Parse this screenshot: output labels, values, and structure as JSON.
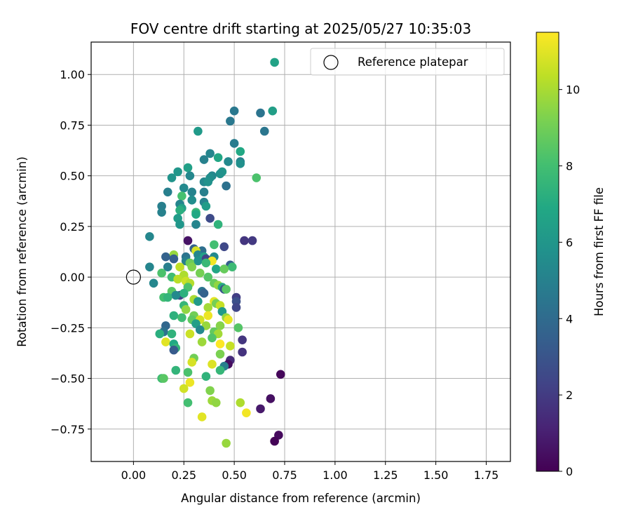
{
  "chart_data": {
    "type": "scatter",
    "title": "FOV centre drift starting at 2025/05/27 10:35:03",
    "xlabel": "Angular distance from reference (arcmin)",
    "ylabel": "Rotation from reference (arcmin)",
    "xlim": [
      -0.21,
      1.87
    ],
    "ylim": [
      -0.91,
      1.16
    ],
    "xticks": [
      "0.00",
      "0.25",
      "0.50",
      "0.75",
      "1.00",
      "1.25",
      "1.50",
      "1.75"
    ],
    "yticks": [
      "−0.75",
      "−0.50",
      "−0.25",
      "0.00",
      "0.25",
      "0.50",
      "0.75",
      "1.00"
    ],
    "grid": true,
    "legend": {
      "position": "top-right",
      "entries": [
        "Reference platepar"
      ]
    },
    "colorbar": {
      "label": "Hours from first FF file",
      "min": 0,
      "max": 11.5,
      "ticks": [
        "0",
        "2",
        "4",
        "6",
        "8",
        "10"
      ],
      "colormap": "viridis"
    },
    "reference_point": {
      "x": 0.0,
      "y": 0.0
    },
    "points": [
      {
        "x": 0.7,
        "y": 1.06,
        "h": 6.6
      },
      {
        "x": 0.5,
        "y": 0.82,
        "h": 4.6
      },
      {
        "x": 0.63,
        "y": 0.81,
        "h": 4.4
      },
      {
        "x": 0.69,
        "y": 0.82,
        "h": 6.4
      },
      {
        "x": 0.48,
        "y": 0.77,
        "h": 4.6
      },
      {
        "x": 0.32,
        "y": 0.72,
        "h": 6.2
      },
      {
        "x": 0.65,
        "y": 0.72,
        "h": 4.5
      },
      {
        "x": 0.5,
        "y": 0.66,
        "h": 4.8
      },
      {
        "x": 0.53,
        "y": 0.62,
        "h": 6.9
      },
      {
        "x": 0.38,
        "y": 0.61,
        "h": 5.2
      },
      {
        "x": 0.42,
        "y": 0.59,
        "h": 6.8
      },
      {
        "x": 0.35,
        "y": 0.58,
        "h": 5.0
      },
      {
        "x": 0.47,
        "y": 0.57,
        "h": 5.4
      },
      {
        "x": 0.53,
        "y": 0.57,
        "h": 5.0
      },
      {
        "x": 0.53,
        "y": 0.56,
        "h": 5.7
      },
      {
        "x": 0.27,
        "y": 0.54,
        "h": 6.5
      },
      {
        "x": 0.22,
        "y": 0.52,
        "h": 6.0
      },
      {
        "x": 0.44,
        "y": 0.52,
        "h": 6.0
      },
      {
        "x": 0.43,
        "y": 0.51,
        "h": 5.8
      },
      {
        "x": 0.39,
        "y": 0.5,
        "h": 5.3
      },
      {
        "x": 0.38,
        "y": 0.49,
        "h": 5.6
      },
      {
        "x": 0.28,
        "y": 0.5,
        "h": 5.3
      },
      {
        "x": 0.61,
        "y": 0.49,
        "h": 8.2
      },
      {
        "x": 0.19,
        "y": 0.49,
        "h": 5.9
      },
      {
        "x": 0.35,
        "y": 0.47,
        "h": 5.3
      },
      {
        "x": 0.37,
        "y": 0.47,
        "h": 5.8
      },
      {
        "x": 0.25,
        "y": 0.44,
        "h": 5.4
      },
      {
        "x": 0.46,
        "y": 0.45,
        "h": 4.3
      },
      {
        "x": 0.17,
        "y": 0.42,
        "h": 4.9
      },
      {
        "x": 0.29,
        "y": 0.42,
        "h": 5.1
      },
      {
        "x": 0.35,
        "y": 0.42,
        "h": 4.9
      },
      {
        "x": 0.24,
        "y": 0.4,
        "h": 8.1
      },
      {
        "x": 0.29,
        "y": 0.38,
        "h": 5.6
      },
      {
        "x": 0.35,
        "y": 0.37,
        "h": 5.1
      },
      {
        "x": 0.36,
        "y": 0.35,
        "h": 6.3
      },
      {
        "x": 0.23,
        "y": 0.36,
        "h": 5.2
      },
      {
        "x": 0.14,
        "y": 0.35,
        "h": 4.9
      },
      {
        "x": 0.24,
        "y": 0.34,
        "h": 6.5
      },
      {
        "x": 0.23,
        "y": 0.33,
        "h": 7.2
      },
      {
        "x": 0.31,
        "y": 0.32,
        "h": 7.7
      },
      {
        "x": 0.14,
        "y": 0.32,
        "h": 5.0
      },
      {
        "x": 0.31,
        "y": 0.31,
        "h": 6.9
      },
      {
        "x": 0.38,
        "y": 0.29,
        "h": 2.6
      },
      {
        "x": 0.22,
        "y": 0.29,
        "h": 6.3
      },
      {
        "x": 0.42,
        "y": 0.26,
        "h": 7.4
      },
      {
        "x": 0.23,
        "y": 0.26,
        "h": 6.0
      },
      {
        "x": 0.31,
        "y": 0.26,
        "h": 5.2
      },
      {
        "x": 0.08,
        "y": 0.2,
        "h": 5.3
      },
      {
        "x": 0.55,
        "y": 0.18,
        "h": 1.8
      },
      {
        "x": 0.59,
        "y": 0.18,
        "h": 1.9
      },
      {
        "x": 0.27,
        "y": 0.18,
        "h": 0.6
      },
      {
        "x": 0.4,
        "y": 0.16,
        "h": 8.0
      },
      {
        "x": 0.45,
        "y": 0.15,
        "h": 2.5
      },
      {
        "x": 0.3,
        "y": 0.14,
        "h": 3.6
      },
      {
        "x": 0.34,
        "y": 0.13,
        "h": 4.2
      },
      {
        "x": 0.31,
        "y": 0.13,
        "h": 10.8
      },
      {
        "x": 0.32,
        "y": 0.11,
        "h": 5.3
      },
      {
        "x": 0.2,
        "y": 0.11,
        "h": 9.7
      },
      {
        "x": 0.16,
        "y": 0.1,
        "h": 3.6
      },
      {
        "x": 0.26,
        "y": 0.1,
        "h": 4.4
      },
      {
        "x": 0.35,
        "y": 0.1,
        "h": 6.5
      },
      {
        "x": 0.2,
        "y": 0.09,
        "h": 3.4
      },
      {
        "x": 0.4,
        "y": 0.1,
        "h": 5.4
      },
      {
        "x": 0.36,
        "y": 0.09,
        "h": 2.3
      },
      {
        "x": 0.26,
        "y": 0.08,
        "h": 4.9
      },
      {
        "x": 0.32,
        "y": 0.08,
        "h": 5.8
      },
      {
        "x": 0.39,
        "y": 0.08,
        "h": 11.3
      },
      {
        "x": 0.28,
        "y": 0.07,
        "h": 8.9
      },
      {
        "x": 0.36,
        "y": 0.07,
        "h": 7.7
      },
      {
        "x": 0.48,
        "y": 0.06,
        "h": 3.4
      },
      {
        "x": 0.49,
        "y": 0.05,
        "h": 7.8
      },
      {
        "x": 0.08,
        "y": 0.05,
        "h": 5.2
      },
      {
        "x": 0.17,
        "y": 0.05,
        "h": 4.9
      },
      {
        "x": 0.29,
        "y": 0.05,
        "h": 9.3
      },
      {
        "x": 0.23,
        "y": 0.05,
        "h": 10.4
      },
      {
        "x": 0.41,
        "y": 0.04,
        "h": 6.8
      },
      {
        "x": 0.45,
        "y": 0.04,
        "h": 8.8
      },
      {
        "x": 0.14,
        "y": 0.02,
        "h": 8.2
      },
      {
        "x": 0.33,
        "y": 0.02,
        "h": 9.1
      },
      {
        "x": 0.25,
        "y": 0.01,
        "h": 10.1
      },
      {
        "x": 0.37,
        "y": 0.0,
        "h": 8.4
      },
      {
        "x": 0.19,
        "y": 0.0,
        "h": 7.9
      },
      {
        "x": 0.22,
        "y": -0.01,
        "h": 10.3
      },
      {
        "x": 0.26,
        "y": -0.02,
        "h": 10.6
      },
      {
        "x": 0.28,
        "y": -0.03,
        "h": 10.2
      },
      {
        "x": 0.1,
        "y": -0.03,
        "h": 5.3
      },
      {
        "x": 0.4,
        "y": -0.03,
        "h": 8.8
      },
      {
        "x": 0.42,
        "y": -0.04,
        "h": 9.6
      },
      {
        "x": 0.27,
        "y": -0.05,
        "h": 8.2
      },
      {
        "x": 0.44,
        "y": -0.05,
        "h": 7.0
      },
      {
        "x": 0.45,
        "y": -0.06,
        "h": 3.0
      },
      {
        "x": 0.46,
        "y": -0.06,
        "h": 8.5
      },
      {
        "x": 0.19,
        "y": -0.07,
        "h": 8.5
      },
      {
        "x": 0.34,
        "y": -0.07,
        "h": 4.4
      },
      {
        "x": 0.35,
        "y": -0.08,
        "h": 3.6
      },
      {
        "x": 0.23,
        "y": -0.09,
        "h": 2.4
      },
      {
        "x": 0.25,
        "y": -0.08,
        "h": 7.3
      },
      {
        "x": 0.15,
        "y": -0.1,
        "h": 8.0
      },
      {
        "x": 0.21,
        "y": -0.09,
        "h": 5.4
      },
      {
        "x": 0.17,
        "y": -0.1,
        "h": 7.5
      },
      {
        "x": 0.3,
        "y": -0.11,
        "h": 10.0
      },
      {
        "x": 0.4,
        "y": -0.12,
        "h": 11.0
      },
      {
        "x": 0.41,
        "y": -0.13,
        "h": 9.1
      },
      {
        "x": 0.32,
        "y": -0.12,
        "h": 6.2
      },
      {
        "x": 0.51,
        "y": -0.1,
        "h": 2.1
      },
      {
        "x": 0.51,
        "y": -0.12,
        "h": 2.8
      },
      {
        "x": 0.43,
        "y": -0.14,
        "h": 10.5
      },
      {
        "x": 0.25,
        "y": -0.14,
        "h": 7.6
      },
      {
        "x": 0.37,
        "y": -0.15,
        "h": 9.9
      },
      {
        "x": 0.51,
        "y": -0.15,
        "h": 2.4
      },
      {
        "x": 0.26,
        "y": -0.16,
        "h": 9.6
      },
      {
        "x": 0.44,
        "y": -0.17,
        "h": 6.2
      },
      {
        "x": 0.2,
        "y": -0.19,
        "h": 7.3
      },
      {
        "x": 0.3,
        "y": -0.19,
        "h": 9.0
      },
      {
        "x": 0.24,
        "y": -0.2,
        "h": 7.9
      },
      {
        "x": 0.37,
        "y": -0.19,
        "h": 11.2
      },
      {
        "x": 0.29,
        "y": -0.21,
        "h": 8.6
      },
      {
        "x": 0.33,
        "y": -0.21,
        "h": 10.7
      },
      {
        "x": 0.46,
        "y": -0.2,
        "h": 9.7
      },
      {
        "x": 0.47,
        "y": -0.21,
        "h": 11.1
      },
      {
        "x": 0.31,
        "y": -0.23,
        "h": 6.4
      },
      {
        "x": 0.36,
        "y": -0.24,
        "h": 9.7
      },
      {
        "x": 0.16,
        "y": -0.24,
        "h": 3.8
      },
      {
        "x": 0.43,
        "y": -0.24,
        "h": 9.4
      },
      {
        "x": 0.52,
        "y": -0.25,
        "h": 8.4
      },
      {
        "x": 0.33,
        "y": -0.26,
        "h": 5.4
      },
      {
        "x": 0.15,
        "y": -0.27,
        "h": 4.3
      },
      {
        "x": 0.4,
        "y": -0.27,
        "h": 8.7
      },
      {
        "x": 0.42,
        "y": -0.28,
        "h": 9.9
      },
      {
        "x": 0.28,
        "y": -0.28,
        "h": 10.6
      },
      {
        "x": 0.13,
        "y": -0.28,
        "h": 7.2
      },
      {
        "x": 0.19,
        "y": -0.28,
        "h": 7.4
      },
      {
        "x": 0.54,
        "y": -0.31,
        "h": 1.8
      },
      {
        "x": 0.39,
        "y": -0.3,
        "h": 8.3
      },
      {
        "x": 0.34,
        "y": -0.32,
        "h": 9.8
      },
      {
        "x": 0.16,
        "y": -0.32,
        "h": 11.0
      },
      {
        "x": 0.2,
        "y": -0.33,
        "h": 6.9
      },
      {
        "x": 0.43,
        "y": -0.33,
        "h": 11.5
      },
      {
        "x": 0.48,
        "y": -0.34,
        "h": 10.5
      },
      {
        "x": 0.21,
        "y": -0.35,
        "h": 7.5
      },
      {
        "x": 0.2,
        "y": -0.36,
        "h": 3.3
      },
      {
        "x": 0.54,
        "y": -0.37,
        "h": 1.7
      },
      {
        "x": 0.43,
        "y": -0.38,
        "h": 9.2
      },
      {
        "x": 0.3,
        "y": -0.4,
        "h": 9.0
      },
      {
        "x": 0.48,
        "y": -0.41,
        "h": 1.4
      },
      {
        "x": 0.29,
        "y": -0.42,
        "h": 10.8
      },
      {
        "x": 0.39,
        "y": -0.43,
        "h": 10.9
      },
      {
        "x": 0.47,
        "y": -0.43,
        "h": 0.4
      },
      {
        "x": 0.45,
        "y": -0.44,
        "h": 4.9
      },
      {
        "x": 0.21,
        "y": -0.46,
        "h": 7.5
      },
      {
        "x": 0.43,
        "y": -0.46,
        "h": 7.6
      },
      {
        "x": 0.27,
        "y": -0.47,
        "h": 8.2
      },
      {
        "x": 0.36,
        "y": -0.49,
        "h": 7.4
      },
      {
        "x": 0.73,
        "y": -0.48,
        "h": 0.2
      },
      {
        "x": 0.14,
        "y": -0.5,
        "h": 7.9
      },
      {
        "x": 0.15,
        "y": -0.5,
        "h": 8.5
      },
      {
        "x": 0.28,
        "y": -0.52,
        "h": 11.2
      },
      {
        "x": 0.25,
        "y": -0.55,
        "h": 10.7
      },
      {
        "x": 0.38,
        "y": -0.56,
        "h": 9.3
      },
      {
        "x": 0.39,
        "y": -0.61,
        "h": 9.8
      },
      {
        "x": 0.68,
        "y": -0.6,
        "h": 0.5
      },
      {
        "x": 0.27,
        "y": -0.62,
        "h": 8.0
      },
      {
        "x": 0.41,
        "y": -0.62,
        "h": 9.6
      },
      {
        "x": 0.53,
        "y": -0.62,
        "h": 10.1
      },
      {
        "x": 0.63,
        "y": -0.65,
        "h": 0.8
      },
      {
        "x": 0.56,
        "y": -0.67,
        "h": 11.3
      },
      {
        "x": 0.34,
        "y": -0.69,
        "h": 11.0
      },
      {
        "x": 0.72,
        "y": -0.78,
        "h": 0.3
      },
      {
        "x": 0.7,
        "y": -0.81,
        "h": 0.1
      },
      {
        "x": 0.46,
        "y": -0.82,
        "h": 9.7
      }
    ]
  }
}
